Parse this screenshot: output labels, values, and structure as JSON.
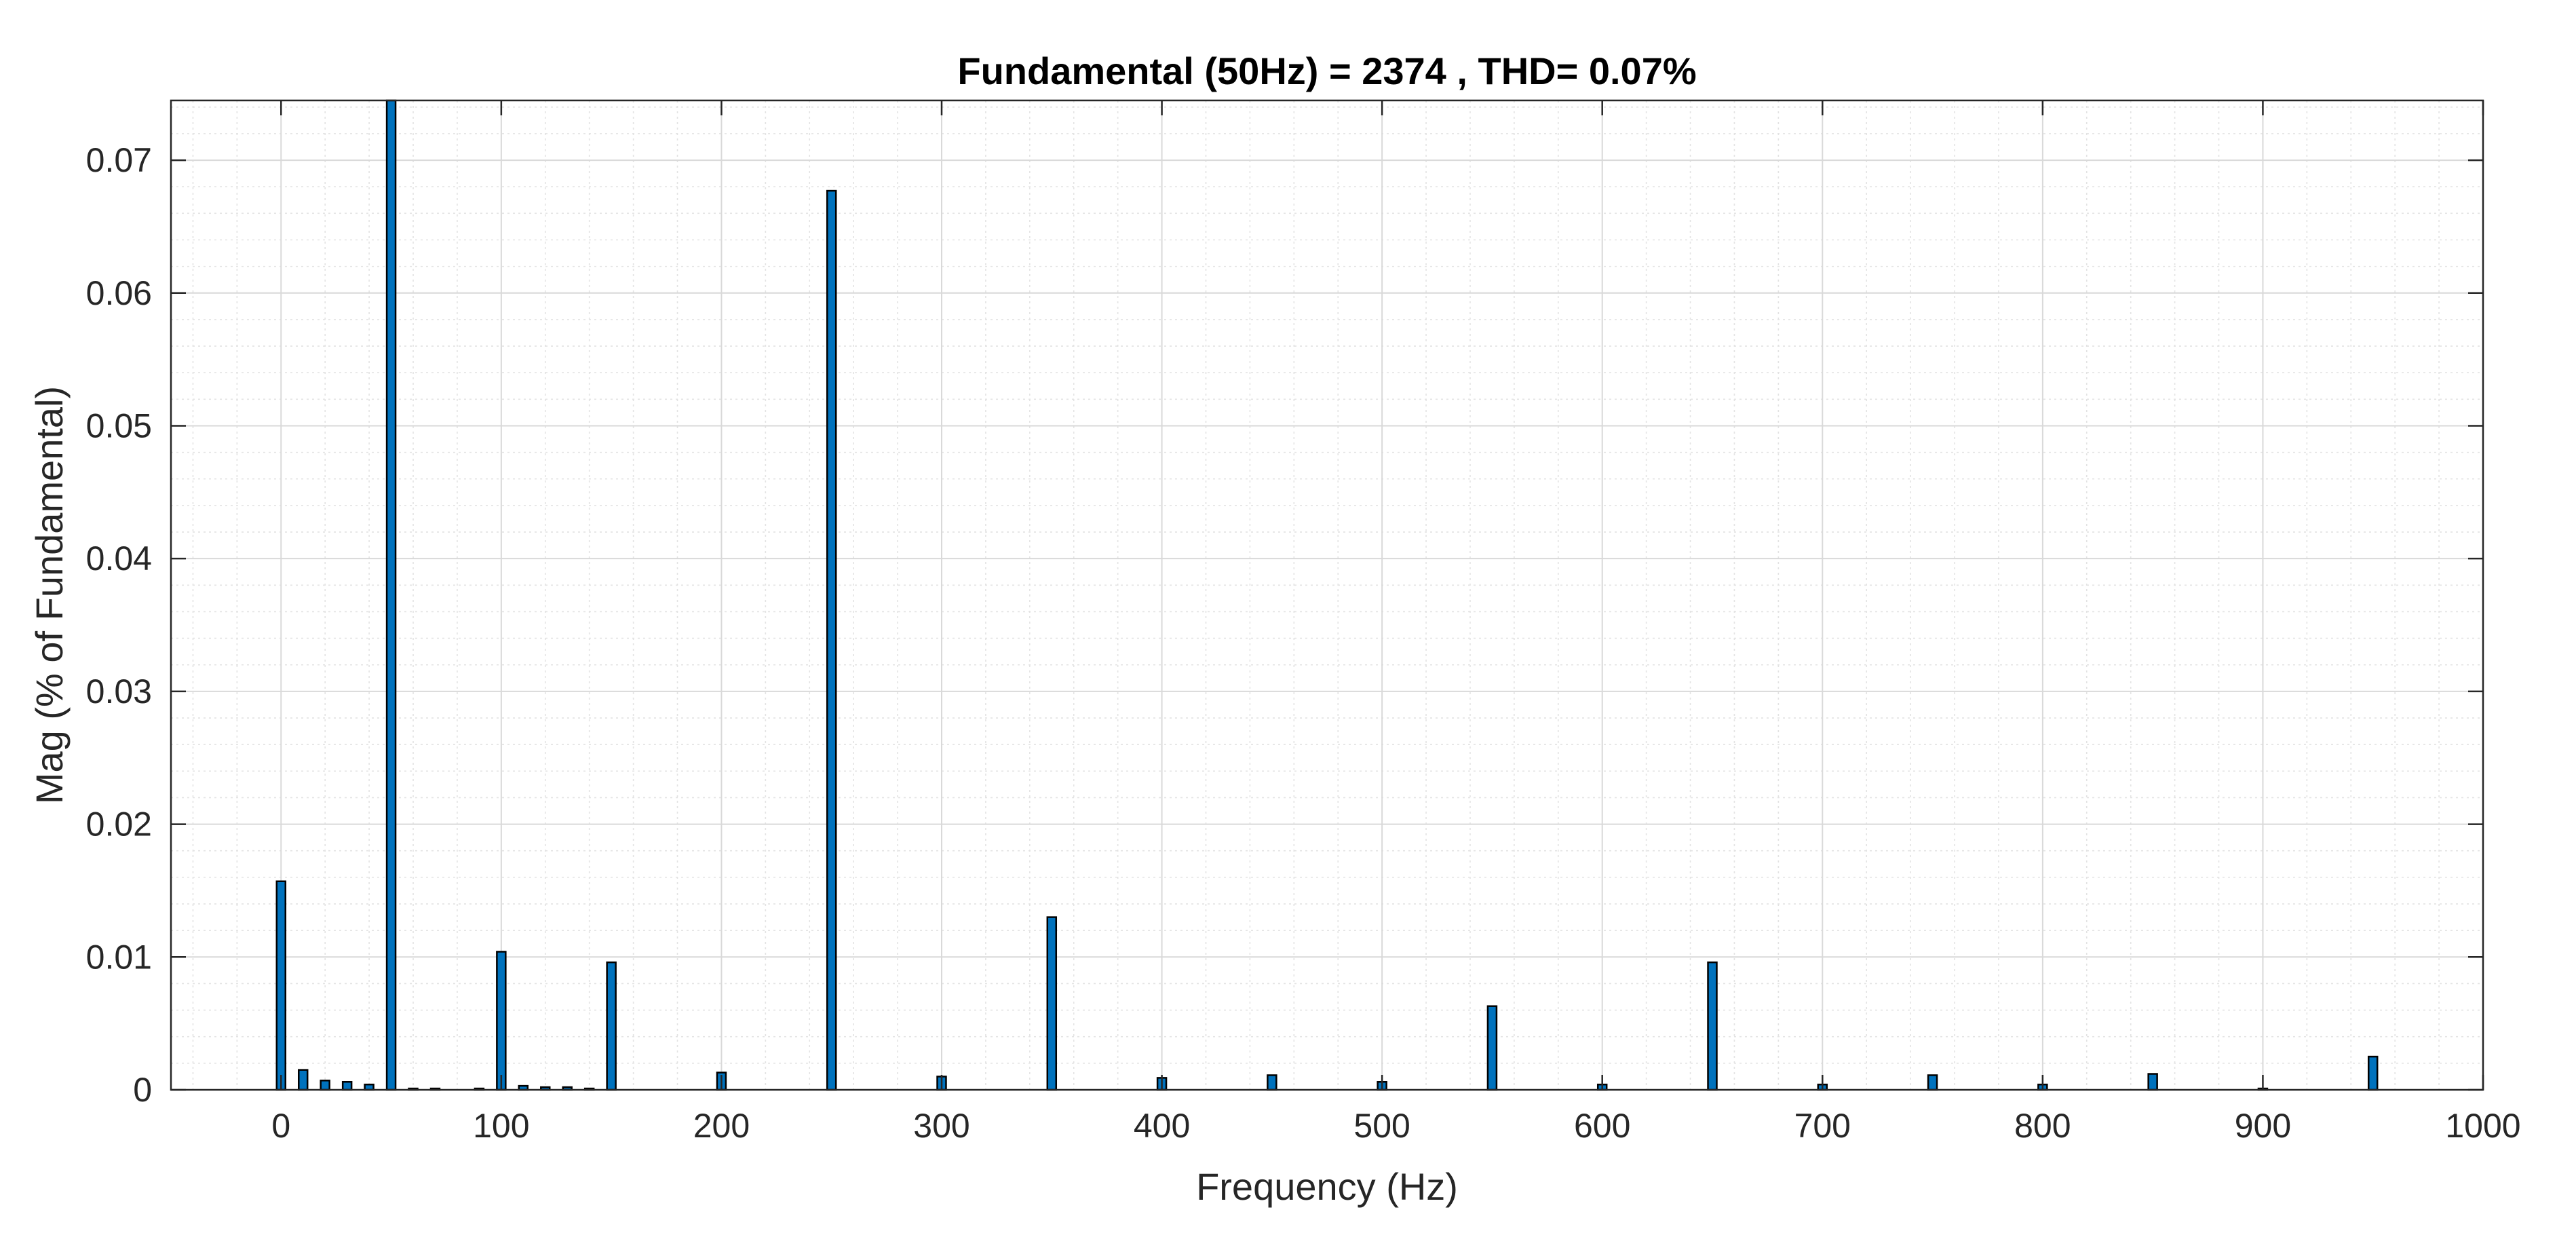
{
  "chart_data": {
    "type": "bar",
    "title": "Fundamental (50Hz) = 2374 , THD= 0.07%",
    "xlabel": "Frequency (Hz)",
    "ylabel": "Mag (% of Fundamental)",
    "xlim": [
      -50,
      1000
    ],
    "ylim": [
      0,
      0.0745
    ],
    "x_ticks": [
      0,
      100,
      200,
      300,
      400,
      500,
      600,
      700,
      800,
      900,
      1000
    ],
    "x_tick_labels": [
      "0",
      "100",
      "200",
      "300",
      "400",
      "500",
      "600",
      "700",
      "800",
      "900",
      "1000"
    ],
    "y_ticks": [
      0,
      0.01,
      0.02,
      0.03,
      0.04,
      0.05,
      0.06,
      0.07
    ],
    "y_tick_labels": [
      "0",
      "0.01",
      "0.02",
      "0.03",
      "0.04",
      "0.05",
      "0.06",
      "0.07"
    ],
    "grid": "on",
    "minor_grid": "on",
    "bar_color": "#0072BD",
    "bar_edge_color": "#000000",
    "bar_width_hz": 4,
    "x": [
      0,
      10,
      20,
      30,
      40,
      50,
      60,
      70,
      80,
      90,
      100,
      110,
      120,
      130,
      140,
      150,
      200,
      250,
      300,
      350,
      400,
      450,
      500,
      550,
      600,
      650,
      700,
      750,
      800,
      850,
      900,
      950
    ],
    "values": [
      0.0157,
      0.0015,
      0.0007,
      0.0006,
      0.0004,
      0.0745,
      0.0001,
      0.0001,
      0.0,
      0.0001,
      0.0104,
      0.0003,
      0.0002,
      0.0002,
      0.0001,
      0.0096,
      0.0013,
      0.0677,
      0.001,
      0.013,
      0.0009,
      0.0011,
      0.0006,
      0.0063,
      0.0004,
      0.0096,
      0.0004,
      0.0011,
      0.0004,
      0.0012,
      0.0001,
      0.0025
    ]
  }
}
